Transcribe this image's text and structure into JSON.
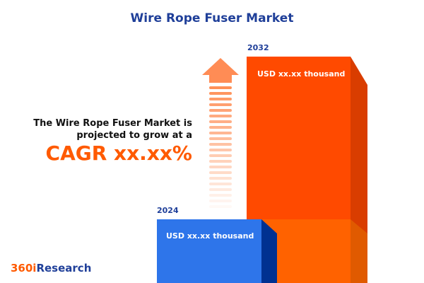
{
  "title": "Wire Rope Fuser Market",
  "description_line1": "The Wire Rope Fuser Market is",
  "description_line2": "projected to grow at a",
  "cagr": "CAGR xx.xx%",
  "bars": [
    {
      "year": "2024",
      "label": "USD xx.xx thousand",
      "color": "#2e75ea",
      "side_color": "#003191"
    },
    {
      "year": "2032",
      "label": "USD xx.xx thousand",
      "color": "#ff4a00",
      "side_color": "#d93d00"
    }
  ],
  "logo": {
    "part1": "360i",
    "part2": "Research",
    "color1": "#ff5a00",
    "color2": "#1f3f99"
  },
  "icons": {
    "growth_arrow": "arrow-up-icon"
  }
}
